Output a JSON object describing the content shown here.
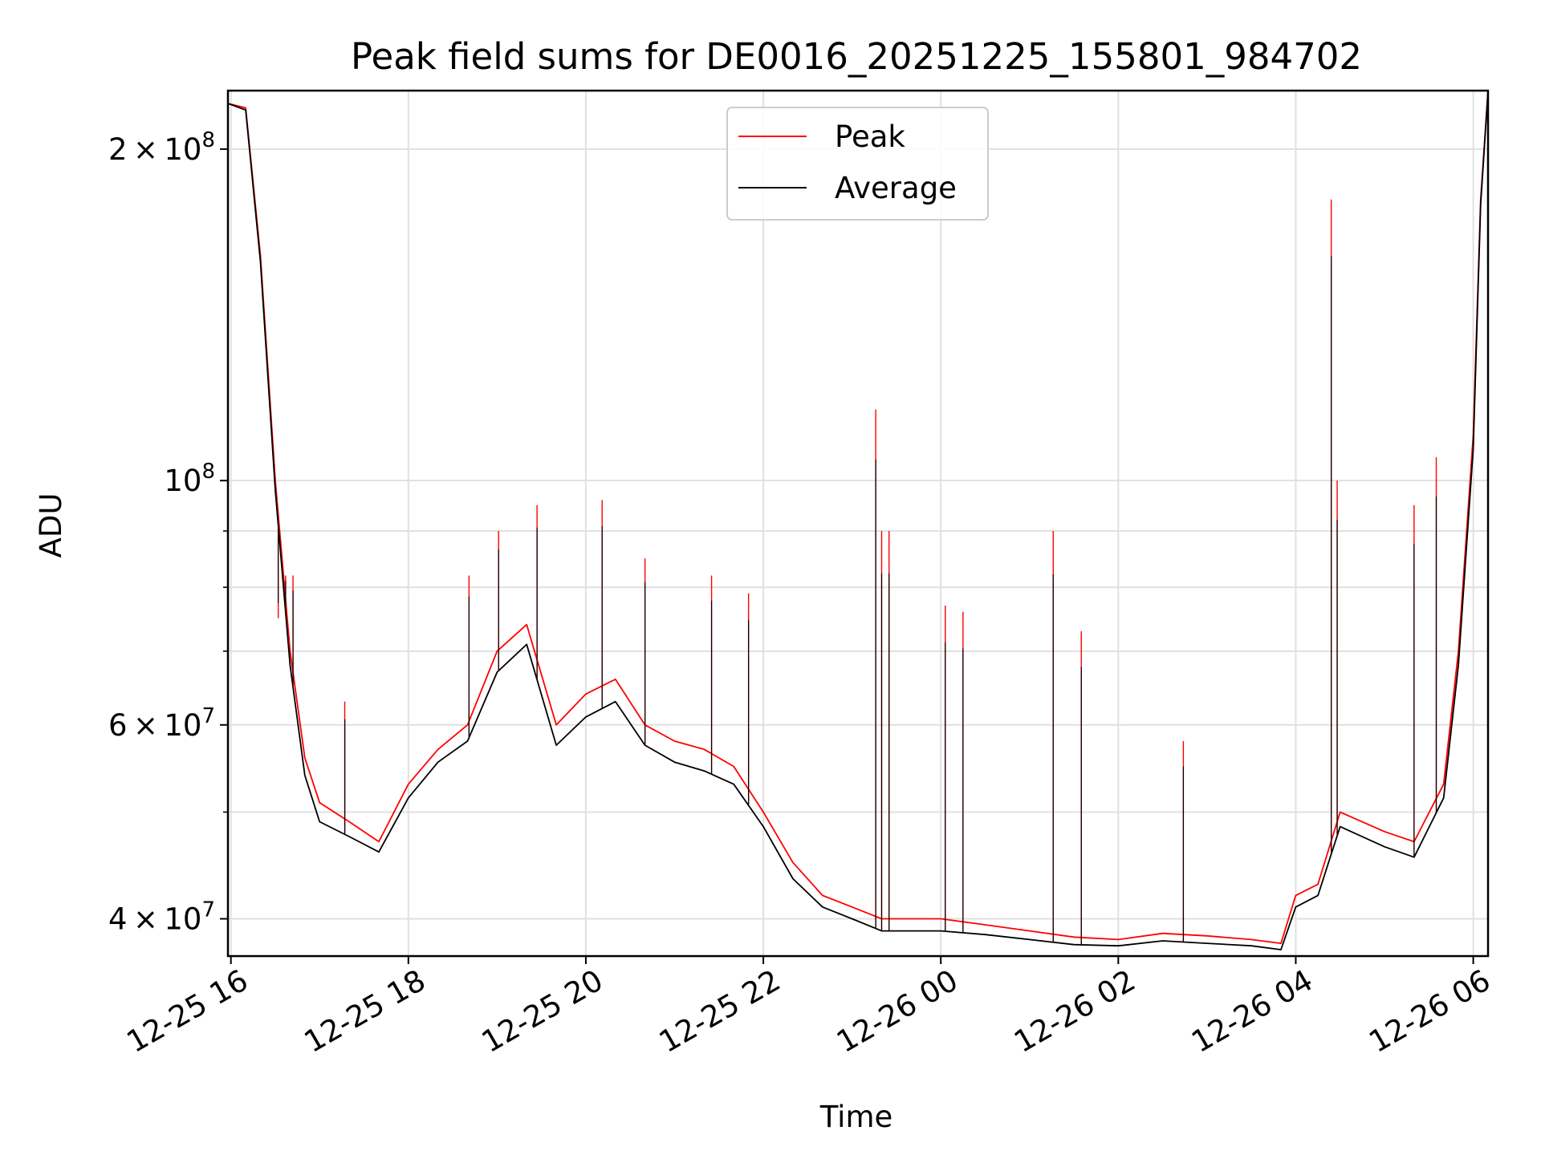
{
  "chart_data": {
    "type": "line",
    "title": "Peak field sums for DE0016_20251225_155801_984702",
    "xlabel": "Time",
    "ylabel": "ADU",
    "yscale": "log",
    "grid": true,
    "legend_position": "upper center",
    "xlim": [
      "2025-12-25 15:58",
      "2025-12-26 06:10"
    ],
    "ylim": [
      37000000,
      226000000
    ],
    "x_ticks": [
      "12-25 16",
      "12-25 18",
      "12-25 20",
      "12-25 22",
      "12-26 00",
      "12-26 02",
      "12-26 04",
      "12-26 06"
    ],
    "y_ticks": [
      {
        "value": 40000000,
        "mantissa": "4",
        "exp": "7"
      },
      {
        "value": 60000000,
        "mantissa": "6",
        "exp": "7"
      },
      {
        "value": 100000000,
        "mantissa": "",
        "exp": "8"
      },
      {
        "value": 200000000,
        "mantissa": "2",
        "exp": "8"
      }
    ],
    "series": [
      {
        "name": "Peak",
        "color": "#ff0000",
        "points": [
          [
            "2025-12-25 15:58",
            220000000
          ],
          [
            "2025-12-25 16:10",
            218000000
          ],
          [
            "2025-12-25 16:20",
            160000000
          ],
          [
            "2025-12-25 16:30",
            100000000
          ],
          [
            "2025-12-25 16:40",
            70000000
          ],
          [
            "2025-12-25 16:50",
            56000000
          ],
          [
            "2025-12-25 17:00",
            51000000
          ],
          [
            "2025-12-25 17:20",
            49000000
          ],
          [
            "2025-12-25 17:40",
            47000000
          ],
          [
            "2025-12-25 18:00",
            53000000
          ],
          [
            "2025-12-25 18:20",
            57000000
          ],
          [
            "2025-12-25 18:40",
            60000000
          ],
          [
            "2025-12-25 19:00",
            70000000
          ],
          [
            "2025-12-25 19:20",
            74000000
          ],
          [
            "2025-12-25 19:40",
            60000000
          ],
          [
            "2025-12-25 20:00",
            64000000
          ],
          [
            "2025-12-25 20:20",
            66000000
          ],
          [
            "2025-12-25 20:40",
            60000000
          ],
          [
            "2025-12-25 21:00",
            58000000
          ],
          [
            "2025-12-25 21:20",
            57000000
          ],
          [
            "2025-12-25 21:40",
            55000000
          ],
          [
            "2025-12-25 22:00",
            50000000
          ],
          [
            "2025-12-25 22:20",
            45000000
          ],
          [
            "2025-12-25 22:40",
            42000000
          ],
          [
            "2025-12-25 23:00",
            41000000
          ],
          [
            "2025-12-25 23:20",
            40000000
          ],
          [
            "2025-12-25 23:40",
            40000000
          ],
          [
            "2025-12-26 00:00",
            40000000
          ],
          [
            "2025-12-26 00:30",
            39500000
          ],
          [
            "2025-12-26 01:00",
            39000000
          ],
          [
            "2025-12-26 01:30",
            38500000
          ],
          [
            "2025-12-26 02:00",
            38300000
          ],
          [
            "2025-12-26 02:30",
            38800000
          ],
          [
            "2025-12-26 03:00",
            38600000
          ],
          [
            "2025-12-26 03:30",
            38300000
          ],
          [
            "2025-12-26 03:50",
            38000000
          ],
          [
            "2025-12-26 04:00",
            42000000
          ],
          [
            "2025-12-26 04:15",
            43000000
          ],
          [
            "2025-12-26 04:30",
            50000000
          ],
          [
            "2025-12-26 05:00",
            48000000
          ],
          [
            "2025-12-26 05:20",
            47000000
          ],
          [
            "2025-12-26 05:40",
            53000000
          ],
          [
            "2025-12-26 05:50",
            70000000
          ],
          [
            "2025-12-26 06:00",
            110000000
          ],
          [
            "2025-12-26 06:05",
            180000000
          ],
          [
            "2025-12-26 06:10",
            226000000
          ]
        ]
      },
      {
        "name": "Average",
        "color": "#000000",
        "points": [
          [
            "2025-12-25 15:58",
            220000000
          ],
          [
            "2025-12-25 16:10",
            217000000
          ],
          [
            "2025-12-25 16:20",
            158000000
          ],
          [
            "2025-12-25 16:30",
            98000000
          ],
          [
            "2025-12-25 16:40",
            68000000
          ],
          [
            "2025-12-25 16:50",
            54000000
          ],
          [
            "2025-12-25 17:00",
            49000000
          ],
          [
            "2025-12-25 17:20",
            47500000
          ],
          [
            "2025-12-25 17:40",
            46000000
          ],
          [
            "2025-12-25 18:00",
            51500000
          ],
          [
            "2025-12-25 18:20",
            55500000
          ],
          [
            "2025-12-25 18:40",
            58000000
          ],
          [
            "2025-12-25 19:00",
            67000000
          ],
          [
            "2025-12-25 19:20",
            71000000
          ],
          [
            "2025-12-25 19:40",
            57500000
          ],
          [
            "2025-12-25 20:00",
            61000000
          ],
          [
            "2025-12-25 20:20",
            63000000
          ],
          [
            "2025-12-25 20:40",
            57500000
          ],
          [
            "2025-12-25 21:00",
            55500000
          ],
          [
            "2025-12-25 21:20",
            54500000
          ],
          [
            "2025-12-25 21:40",
            53000000
          ],
          [
            "2025-12-25 22:00",
            48500000
          ],
          [
            "2025-12-25 22:20",
            43500000
          ],
          [
            "2025-12-25 22:40",
            41000000
          ],
          [
            "2025-12-25 23:00",
            40000000
          ],
          [
            "2025-12-25 23:20",
            39000000
          ],
          [
            "2025-12-25 23:40",
            39000000
          ],
          [
            "2025-12-26 00:00",
            39000000
          ],
          [
            "2025-12-26 00:30",
            38700000
          ],
          [
            "2025-12-26 01:00",
            38300000
          ],
          [
            "2025-12-26 01:30",
            37900000
          ],
          [
            "2025-12-26 02:00",
            37800000
          ],
          [
            "2025-12-26 02:30",
            38200000
          ],
          [
            "2025-12-26 03:00",
            38000000
          ],
          [
            "2025-12-26 03:30",
            37800000
          ],
          [
            "2025-12-26 03:50",
            37500000
          ],
          [
            "2025-12-26 04:00",
            41000000
          ],
          [
            "2025-12-26 04:15",
            42000000
          ],
          [
            "2025-12-26 04:30",
            48500000
          ],
          [
            "2025-12-26 05:00",
            46500000
          ],
          [
            "2025-12-26 05:20",
            45500000
          ],
          [
            "2025-12-26 05:40",
            51500000
          ],
          [
            "2025-12-26 05:50",
            68000000
          ],
          [
            "2025-12-26 06:00",
            107000000
          ],
          [
            "2025-12-26 06:05",
            178000000
          ],
          [
            "2025-12-26 06:10",
            226000000
          ]
        ]
      }
    ],
    "spikes": [
      [
        "2025-12-25 16:32",
        75000000
      ],
      [
        "2025-12-25 16:37",
        82000000
      ],
      [
        "2025-12-25 16:42",
        82000000
      ],
      [
        "2025-12-25 17:17",
        63000000
      ],
      [
        "2025-12-25 18:41",
        82000000
      ],
      [
        "2025-12-25 19:01",
        90000000
      ],
      [
        "2025-12-25 19:27",
        95000000
      ],
      [
        "2025-12-25 20:11",
        96000000
      ],
      [
        "2025-12-25 20:40",
        85000000
      ],
      [
        "2025-12-25 21:25",
        82000000
      ],
      [
        "2025-12-25 21:50",
        79000000
      ],
      [
        "2025-12-25 23:16",
        116000000
      ],
      [
        "2025-12-25 23:20",
        90000000
      ],
      [
        "2025-12-25 23:25",
        90000000
      ],
      [
        "2025-12-26 00:03",
        77000000
      ],
      [
        "2025-12-26 00:15",
        76000000
      ],
      [
        "2025-12-26 01:16",
        90000000
      ],
      [
        "2025-12-26 01:35",
        73000000
      ],
      [
        "2025-12-26 02:44",
        58000000
      ],
      [
        "2025-12-26 04:24",
        180000000
      ],
      [
        "2025-12-26 04:28",
        100000000
      ],
      [
        "2025-12-26 05:20",
        95000000
      ],
      [
        "2025-12-26 05:35",
        105000000
      ]
    ],
    "legend": [
      {
        "label": "Peak",
        "color": "#ff0000"
      },
      {
        "label": "Average",
        "color": "#000000"
      }
    ]
  }
}
